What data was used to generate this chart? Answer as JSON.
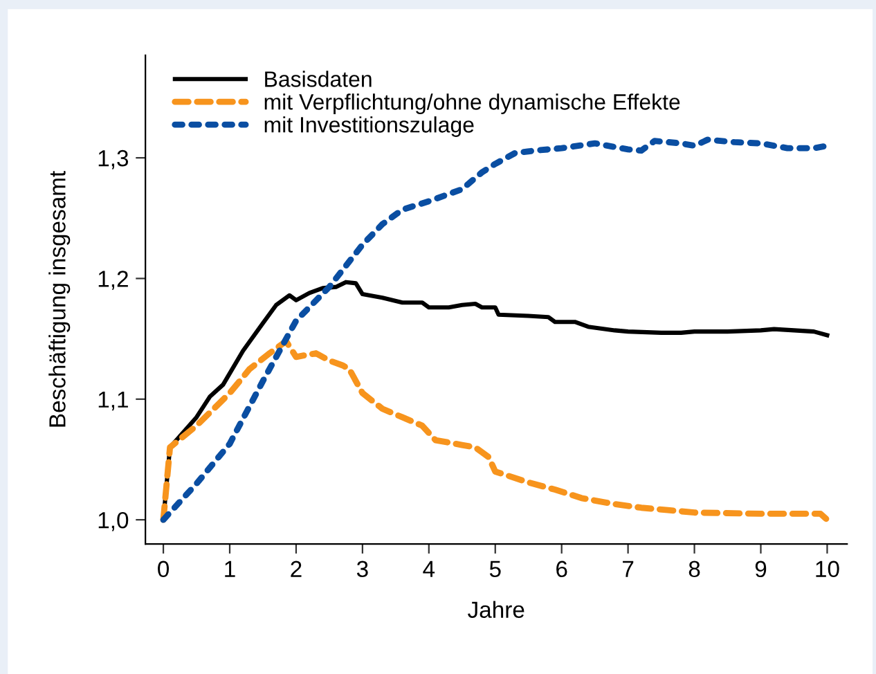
{
  "chart_data": {
    "type": "line",
    "xlabel": "Jahre",
    "ylabel": "Beschäftigung insgesamt",
    "xlim": [
      -0.27,
      10.3
    ],
    "ylim": [
      0.98,
      1.385
    ],
    "xticks": [
      0,
      1,
      2,
      3,
      4,
      5,
      6,
      7,
      8,
      9,
      10
    ],
    "yticks": [
      {
        "value": 1.0,
        "label": "1,0"
      },
      {
        "value": 1.1,
        "label": "1,1"
      },
      {
        "value": 1.2,
        "label": "1,2"
      },
      {
        "value": 1.3,
        "label": "1,3"
      }
    ],
    "grid": false,
    "legend": "top left",
    "marker": "none",
    "series": [
      {
        "name": "Basisdaten",
        "color": "#000000",
        "line_style": "solid",
        "x": [
          0,
          0.1,
          0.5,
          0.7,
          0.9,
          1.2,
          1.5,
          1.7,
          1.9,
          2.0,
          2.2,
          2.4,
          2.6,
          2.75,
          2.9,
          3.0,
          3.3,
          3.6,
          3.9,
          4.0,
          4.3,
          4.5,
          4.7,
          4.8,
          5.0,
          5.05,
          5.5,
          5.8,
          5.9,
          6.2,
          6.4,
          6.8,
          7.0,
          7.5,
          7.8,
          8.0,
          8.5,
          9.0,
          9.2,
          9.5,
          9.8,
          10
        ],
        "values": [
          1.0,
          1.06,
          1.085,
          1.102,
          1.112,
          1.14,
          1.163,
          1.178,
          1.186,
          1.182,
          1.188,
          1.192,
          1.193,
          1.197,
          1.196,
          1.187,
          1.184,
          1.18,
          1.18,
          1.176,
          1.176,
          1.178,
          1.179,
          1.176,
          1.176,
          1.17,
          1.169,
          1.168,
          1.164,
          1.164,
          1.16,
          1.157,
          1.156,
          1.155,
          1.155,
          1.156,
          1.156,
          1.157,
          1.158,
          1.157,
          1.156,
          1.153
        ]
      },
      {
        "name": "mit Verpflichtung/ohne dynamische Effekte",
        "color": "#f7941d",
        "line_style": "dashed",
        "x": [
          0,
          0.1,
          0.5,
          1.0,
          1.3,
          1.6,
          1.85,
          2.0,
          2.3,
          2.5,
          2.7,
          2.8,
          3.0,
          3.3,
          3.6,
          3.9,
          4.1,
          4.5,
          4.7,
          4.9,
          5.0,
          5.5,
          5.9,
          6.3,
          6.8,
          7.2,
          7.6,
          8.0,
          9.0,
          9.9,
          10
        ],
        "values": [
          1.0,
          1.06,
          1.078,
          1.105,
          1.125,
          1.138,
          1.148,
          1.135,
          1.138,
          1.132,
          1.128,
          1.125,
          1.105,
          1.092,
          1.085,
          1.078,
          1.066,
          1.062,
          1.06,
          1.052,
          1.04,
          1.031,
          1.025,
          1.018,
          1.013,
          1.01,
          1.008,
          1.006,
          1.005,
          1.005,
          1.0
        ]
      },
      {
        "name": "mit Investitionszulage",
        "color": "#0a4ea2",
        "line_style": "dotted",
        "x": [
          0,
          0.5,
          1.0,
          1.5,
          2.0,
          2.5,
          3.0,
          3.3,
          3.6,
          4.0,
          4.5,
          4.8,
          5.0,
          5.3,
          5.6,
          6.0,
          6.5,
          7.0,
          7.2,
          7.4,
          7.8,
          8.0,
          8.2,
          8.6,
          9.0,
          9.4,
          9.8,
          10
        ],
        "values": [
          1.0,
          1.03,
          1.063,
          1.115,
          1.165,
          1.193,
          1.228,
          1.245,
          1.257,
          1.264,
          1.274,
          1.288,
          1.295,
          1.304,
          1.306,
          1.308,
          1.312,
          1.307,
          1.306,
          1.314,
          1.312,
          1.31,
          1.315,
          1.313,
          1.312,
          1.308,
          1.308,
          1.31
        ]
      }
    ]
  }
}
